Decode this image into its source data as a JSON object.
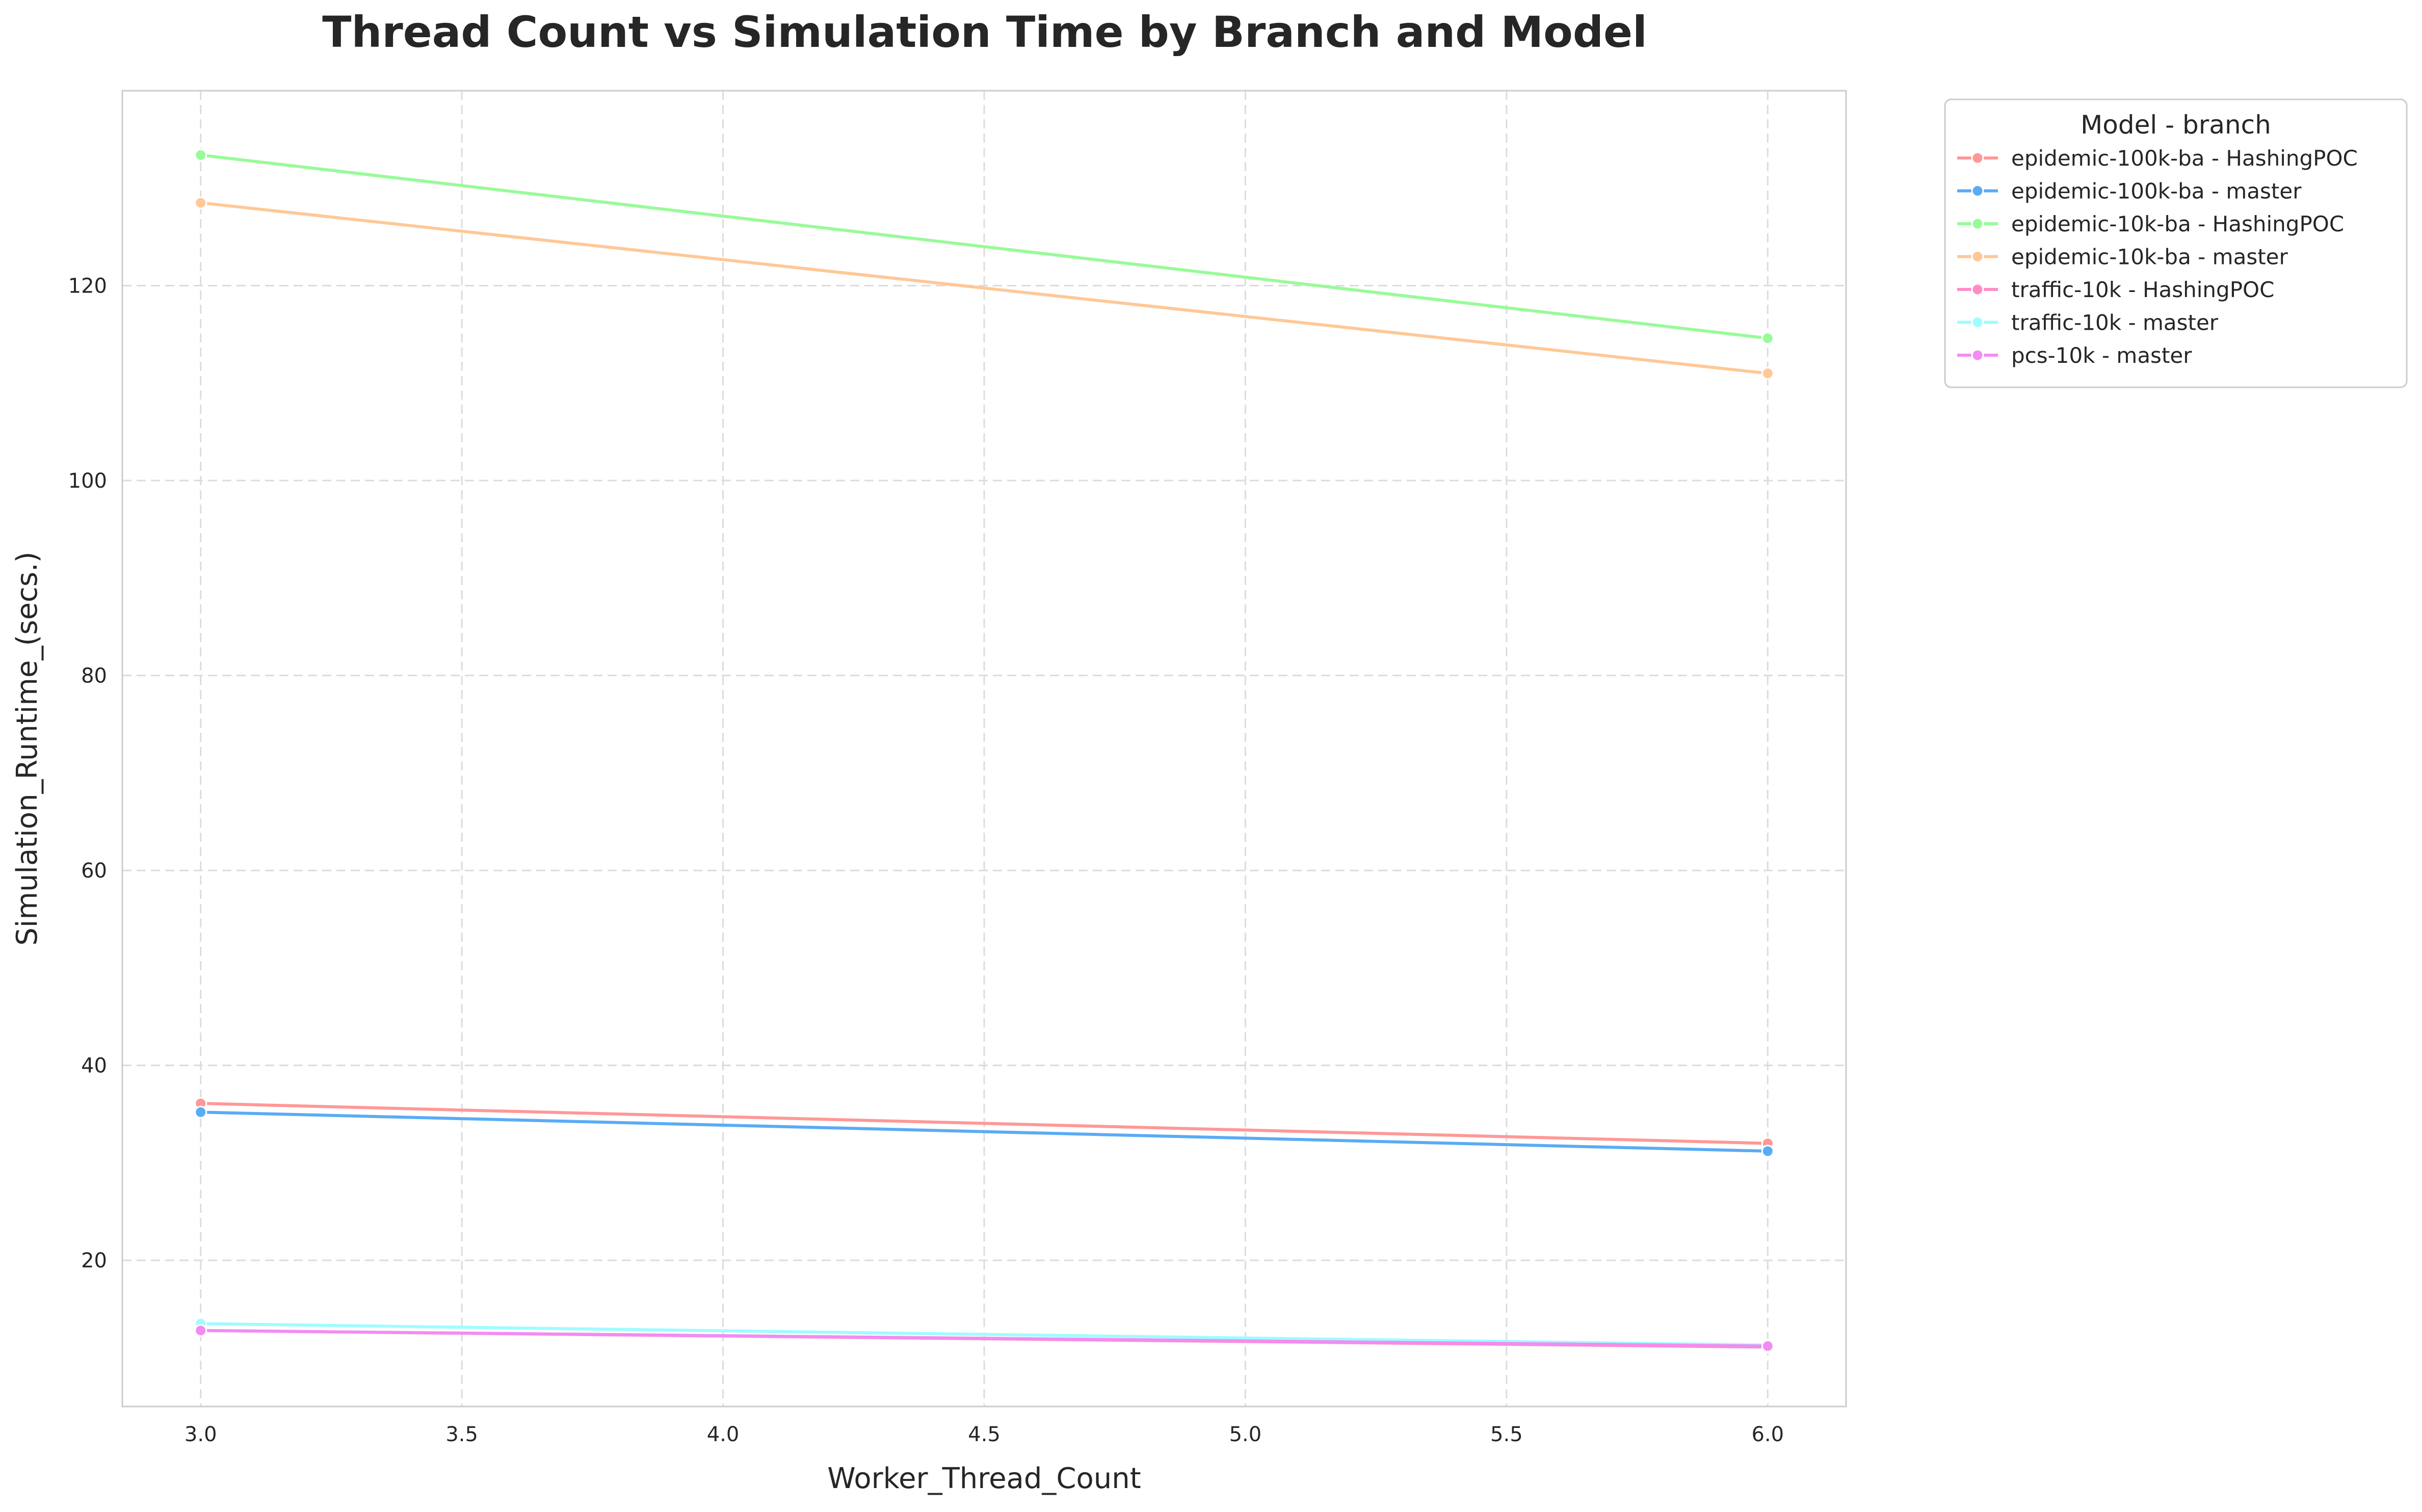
{
  "chart_data": {
    "type": "line",
    "title": "Thread Count vs Simulation Time by Branch and Model",
    "xlabel": "Worker_Thread_Count",
    "ylabel": "Simulation_Runtime_(secs.)",
    "xlim": [
      2.85,
      6.15
    ],
    "ylim": [
      5,
      140
    ],
    "xticks": [
      3.0,
      3.5,
      4.0,
      4.5,
      5.0,
      5.5,
      6.0
    ],
    "xtick_labels": [
      "3.0",
      "3.5",
      "4.0",
      "4.5",
      "5.0",
      "5.5",
      "6.0"
    ],
    "yticks": [
      20,
      40,
      60,
      80,
      100,
      120
    ],
    "ytick_labels": [
      "20",
      "40",
      "60",
      "80",
      "100",
      "120"
    ],
    "grid": true,
    "legend": {
      "title": "Model - branch",
      "placement": "outside-top-right"
    },
    "series": [
      {
        "name": "epidemic-100k-ba - HashingPOC",
        "color": "#ff9896",
        "x": [
          3,
          6
        ],
        "y": [
          36.1,
          32.0
        ]
      },
      {
        "name": "epidemic-100k-ba - master",
        "color": "#5aabf5",
        "x": [
          3,
          6
        ],
        "y": [
          35.2,
          31.2
        ]
      },
      {
        "name": "epidemic-10k-ba - HashingPOC",
        "color": "#98fb98",
        "x": [
          3,
          6
        ],
        "y": [
          133.4,
          114.6
        ]
      },
      {
        "name": "epidemic-10k-ba - master",
        "color": "#ffc896",
        "x": [
          3,
          6
        ],
        "y": [
          128.5,
          111.0
        ]
      },
      {
        "name": "traffic-10k - HashingPOC",
        "color": "#ff8cc6",
        "x": [
          3,
          6
        ],
        "y": [
          12.8,
          11.1
        ]
      },
      {
        "name": "traffic-10k - master",
        "color": "#9ffcff",
        "x": [
          3,
          6
        ],
        "y": [
          13.5,
          11.3
        ]
      },
      {
        "name": "pcs-10k - master",
        "color": "#f28cf2",
        "x": [
          3,
          6
        ],
        "y": [
          12.8,
          11.2
        ]
      }
    ]
  }
}
